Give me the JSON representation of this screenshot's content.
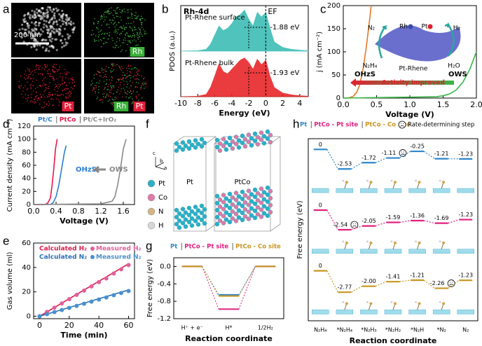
{
  "panel_labels": [
    "a",
    "b",
    "c",
    "d",
    "e",
    "f",
    "g",
    "h"
  ],
  "panel_a": {
    "scale_bar": "200 nm",
    "maps": [
      "Rh",
      "Pt",
      "Rh",
      "Pt"
    ]
  },
  "panel_f": {
    "structures": [
      "Pt",
      "PtCo"
    ],
    "axes": [
      "c",
      "b",
      "a"
    ],
    "legend": [
      "Pt",
      "Co",
      "N",
      "H"
    ]
  },
  "chart_data": [
    {
      "type": "area",
      "title": "Rh-4d",
      "ef_label": "EF",
      "ef": 0,
      "xlabel": "Energy (eV)",
      "ylabel": "PDOS (a.u.)",
      "xlim": [
        -10,
        5
      ],
      "xticks": [
        -10,
        -8,
        -6,
        -4,
        -2,
        0,
        2,
        4
      ],
      "ylim": [
        0,
        2
      ],
      "series": [
        {
          "name": "Pt-Rhene surface",
          "center_label": "-1.88 eV",
          "color": "#3dbdb5",
          "x": [
            -10,
            -8,
            -7,
            -6.5,
            -6,
            -5.5,
            -5,
            -4.5,
            -4,
            -3.5,
            -3,
            -2.5,
            -2,
            -1.5,
            -1,
            -0.5,
            0,
            0.5,
            1,
            2,
            3,
            4,
            5
          ],
          "values": [
            1,
            1.01,
            1.04,
            1.15,
            1.35,
            1.55,
            1.45,
            1.5,
            1.6,
            1.75,
            1.8,
            1.9,
            1.7,
            1.55,
            1.85,
            1.75,
            1.85,
            1.5,
            1.2,
            1.08,
            1.04,
            1.02,
            1.01
          ]
        },
        {
          "name": "Pt-Rhene bulk",
          "center_label": "-1.93 eV",
          "color": "#e8262a",
          "x": [
            -10,
            -8,
            -7,
            -6.5,
            -6,
            -5.5,
            -5,
            -4.5,
            -4,
            -3.5,
            -3,
            -2.5,
            -2,
            -1.5,
            -1,
            -0.5,
            0,
            0.5,
            1,
            2,
            3,
            4,
            5
          ],
          "values": [
            0,
            0.01,
            0.05,
            0.2,
            0.45,
            0.72,
            0.55,
            0.5,
            0.6,
            0.7,
            0.8,
            0.85,
            0.75,
            0.6,
            0.82,
            0.7,
            0.8,
            0.45,
            0.2,
            0.08,
            0.04,
            0.02,
            0.01
          ]
        }
      ]
    },
    {
      "type": "line",
      "xlabel": "Voltage (V)",
      "ylabel": "j (mA cm⁻²)",
      "xlim": [
        0,
        2
      ],
      "xticks": [
        {
          "value": 0,
          "label": "0.0"
        },
        0.5,
        {
          "value": 1,
          "label": "1.0"
        },
        1.5,
        {
          "value": 2,
          "label": "2.0"
        }
      ],
      "ylim": [
        0,
        200
      ],
      "yticks": [
        0,
        50,
        100,
        150,
        200
      ],
      "labels": [
        "N₂",
        "N₂H₄",
        "H₂",
        "H₂O",
        "Rh",
        "Pt",
        "Pt-Rhene",
        "Activity improved"
      ],
      "series": [
        {
          "name": "OHzS",
          "color": "#e87722",
          "x": [
            0,
            0.05,
            0.1,
            0.15,
            0.2,
            0.25,
            0.3,
            0.35,
            0.4,
            0.42
          ],
          "values": [
            0,
            0,
            1,
            4,
            12,
            30,
            65,
            115,
            175,
            200
          ]
        },
        {
          "name": "OWS",
          "color": "#39b54a",
          "x": [
            0,
            0.5,
            1,
            1.4,
            1.5,
            1.6,
            1.7,
            1.8,
            1.9,
            2
          ],
          "values": [
            0,
            1,
            2,
            3,
            5,
            9,
            18,
            35,
            62,
            100
          ]
        }
      ]
    },
    {
      "type": "line",
      "xlabel": "Voltage (V)",
      "ylabel": "Current density (mA cm⁻²)",
      "xlim": [
        0,
        1.8
      ],
      "xticks": [
        {
          "value": 0,
          "label": "0.0"
        },
        0.4,
        0.8,
        1.2,
        1.6
      ],
      "ylim": [
        0,
        120
      ],
      "yticks": [
        0,
        20,
        40,
        60,
        80,
        100,
        120
      ],
      "labels": [
        "OHzS",
        "OWS"
      ],
      "series": [
        {
          "name": "Pt/C",
          "color": "#2a7fd4",
          "x": [
            0,
            0.3,
            0.35,
            0.4,
            0.45,
            0.5,
            0.55,
            0.58
          ],
          "values": [
            0,
            0,
            3,
            12,
            30,
            55,
            80,
            90
          ]
        },
        {
          "name": "PtCo",
          "color": "#e8174a",
          "x": [
            0,
            0.2,
            0.25,
            0.3,
            0.33,
            0.36,
            0.39,
            0.42
          ],
          "values": [
            0,
            0,
            2,
            10,
            30,
            55,
            85,
            100
          ]
        },
        {
          "name": "Pt/C+IrO₂",
          "color": "#888888",
          "x": [
            0,
            1.2,
            1.4,
            1.45,
            1.5,
            1.55,
            1.6,
            1.65
          ],
          "values": [
            0,
            1,
            5,
            12,
            30,
            55,
            85,
            100
          ]
        }
      ]
    },
    {
      "type": "line",
      "xlabel": "Time (min)",
      "ylabel": "Gas volume (ml)",
      "xlim": [
        -4,
        64
      ],
      "xticks": [
        0,
        20,
        40,
        60
      ],
      "ylim": [
        -2,
        60
      ],
      "yticks": [
        0,
        20,
        40,
        60
      ],
      "series": [
        {
          "name": "Calculated H₂",
          "style": "line",
          "color": "#d81b4a",
          "x": [
            0,
            60
          ],
          "values": [
            0,
            43
          ]
        },
        {
          "name": "Measured H₂",
          "style": "markers",
          "color": "#e0609a",
          "x": [
            0,
            5,
            10,
            15,
            20,
            25,
            30,
            35,
            40,
            45,
            50,
            55,
            60
          ],
          "values": [
            0,
            3.5,
            7,
            10.5,
            14,
            17.5,
            21,
            24.5,
            28,
            31,
            35,
            38.5,
            42
          ]
        },
        {
          "name": "Calculated N₂",
          "style": "line",
          "color": "#2a6fb8",
          "x": [
            0,
            60
          ],
          "values": [
            0,
            21.5
          ]
        },
        {
          "name": "Measured N₂",
          "style": "markers",
          "color": "#4a90d0",
          "x": [
            0,
            5,
            10,
            15,
            20,
            25,
            30,
            35,
            40,
            45,
            50,
            55,
            60
          ],
          "values": [
            0,
            1.7,
            3.4,
            5.1,
            6.8,
            8.5,
            10.3,
            12,
            13.7,
            15.4,
            17.2,
            19,
            20.7
          ]
        }
      ]
    },
    {
      "type": "step",
      "xlabel": "Reaction coordinate",
      "ylabel": "Free energy (eV)",
      "categories": [
        "H⁺ + e⁻",
        "H*",
        "1/2H₂"
      ],
      "ylim": [
        -1.2,
        0.2
      ],
      "yticks": [
        {
          "value": 0,
          "label": "0.0"
        },
        -0.4,
        -0.8,
        -1.2
      ],
      "series": [
        {
          "name": "Pt",
          "color": "#2e86c9",
          "values": [
            0,
            -0.65,
            0
          ]
        },
        {
          "name": "PtCo - Pt site",
          "color": "#e0207f",
          "values": [
            0,
            -0.98,
            0
          ]
        },
        {
          "name": "PtCo - Co site",
          "color": "#c8961e",
          "values": [
            0,
            -0.68,
            0
          ]
        }
      ]
    },
    {
      "type": "step",
      "banded": true,
      "xlabel": "Reaction coordinate",
      "ylabel": "Free energy (eV)",
      "rds_label": "Rate-determining step",
      "categories": [
        "N₂H₄",
        "*N₂H₄",
        "*N₂H₃",
        "*N₂H₂",
        "*N₂H",
        "*N₂",
        "N₂"
      ],
      "ylim": [
        -3,
        0.3
      ],
      "series": [
        {
          "name": "Pt",
          "color": "#2e86c9",
          "values": [
            0,
            -2.53,
            -1.72,
            -1.11,
            -0.25,
            -1.21,
            -1.23
          ],
          "value_labels": [
            "0",
            "-2.53",
            "-1.72",
            "-1.11",
            "-0.25",
            "-1.21",
            "-1.23"
          ],
          "rds": 3
        },
        {
          "name": "PtCo - Pt site",
          "color": "#e0207f",
          "values": [
            0,
            -2.54,
            -2.05,
            -1.59,
            -1.36,
            -1.69,
            -1.23
          ],
          "value_labels": [
            "0",
            "-2.54",
            "-2.05",
            "-1.59",
            "-1.36",
            "-1.69",
            "-1.23"
          ],
          "rds": 1
        },
        {
          "name": "PtCo - Co site",
          "color": "#c8961e",
          "values": [
            0,
            -2.77,
            -2,
            -1.41,
            -1.21,
            -2.26,
            -1.23
          ],
          "value_labels": [
            "0",
            "-2.77",
            "-2.00",
            "-1.41",
            "-1.21",
            "-2.26",
            "-1.23"
          ],
          "rds": 5
        }
      ]
    }
  ]
}
